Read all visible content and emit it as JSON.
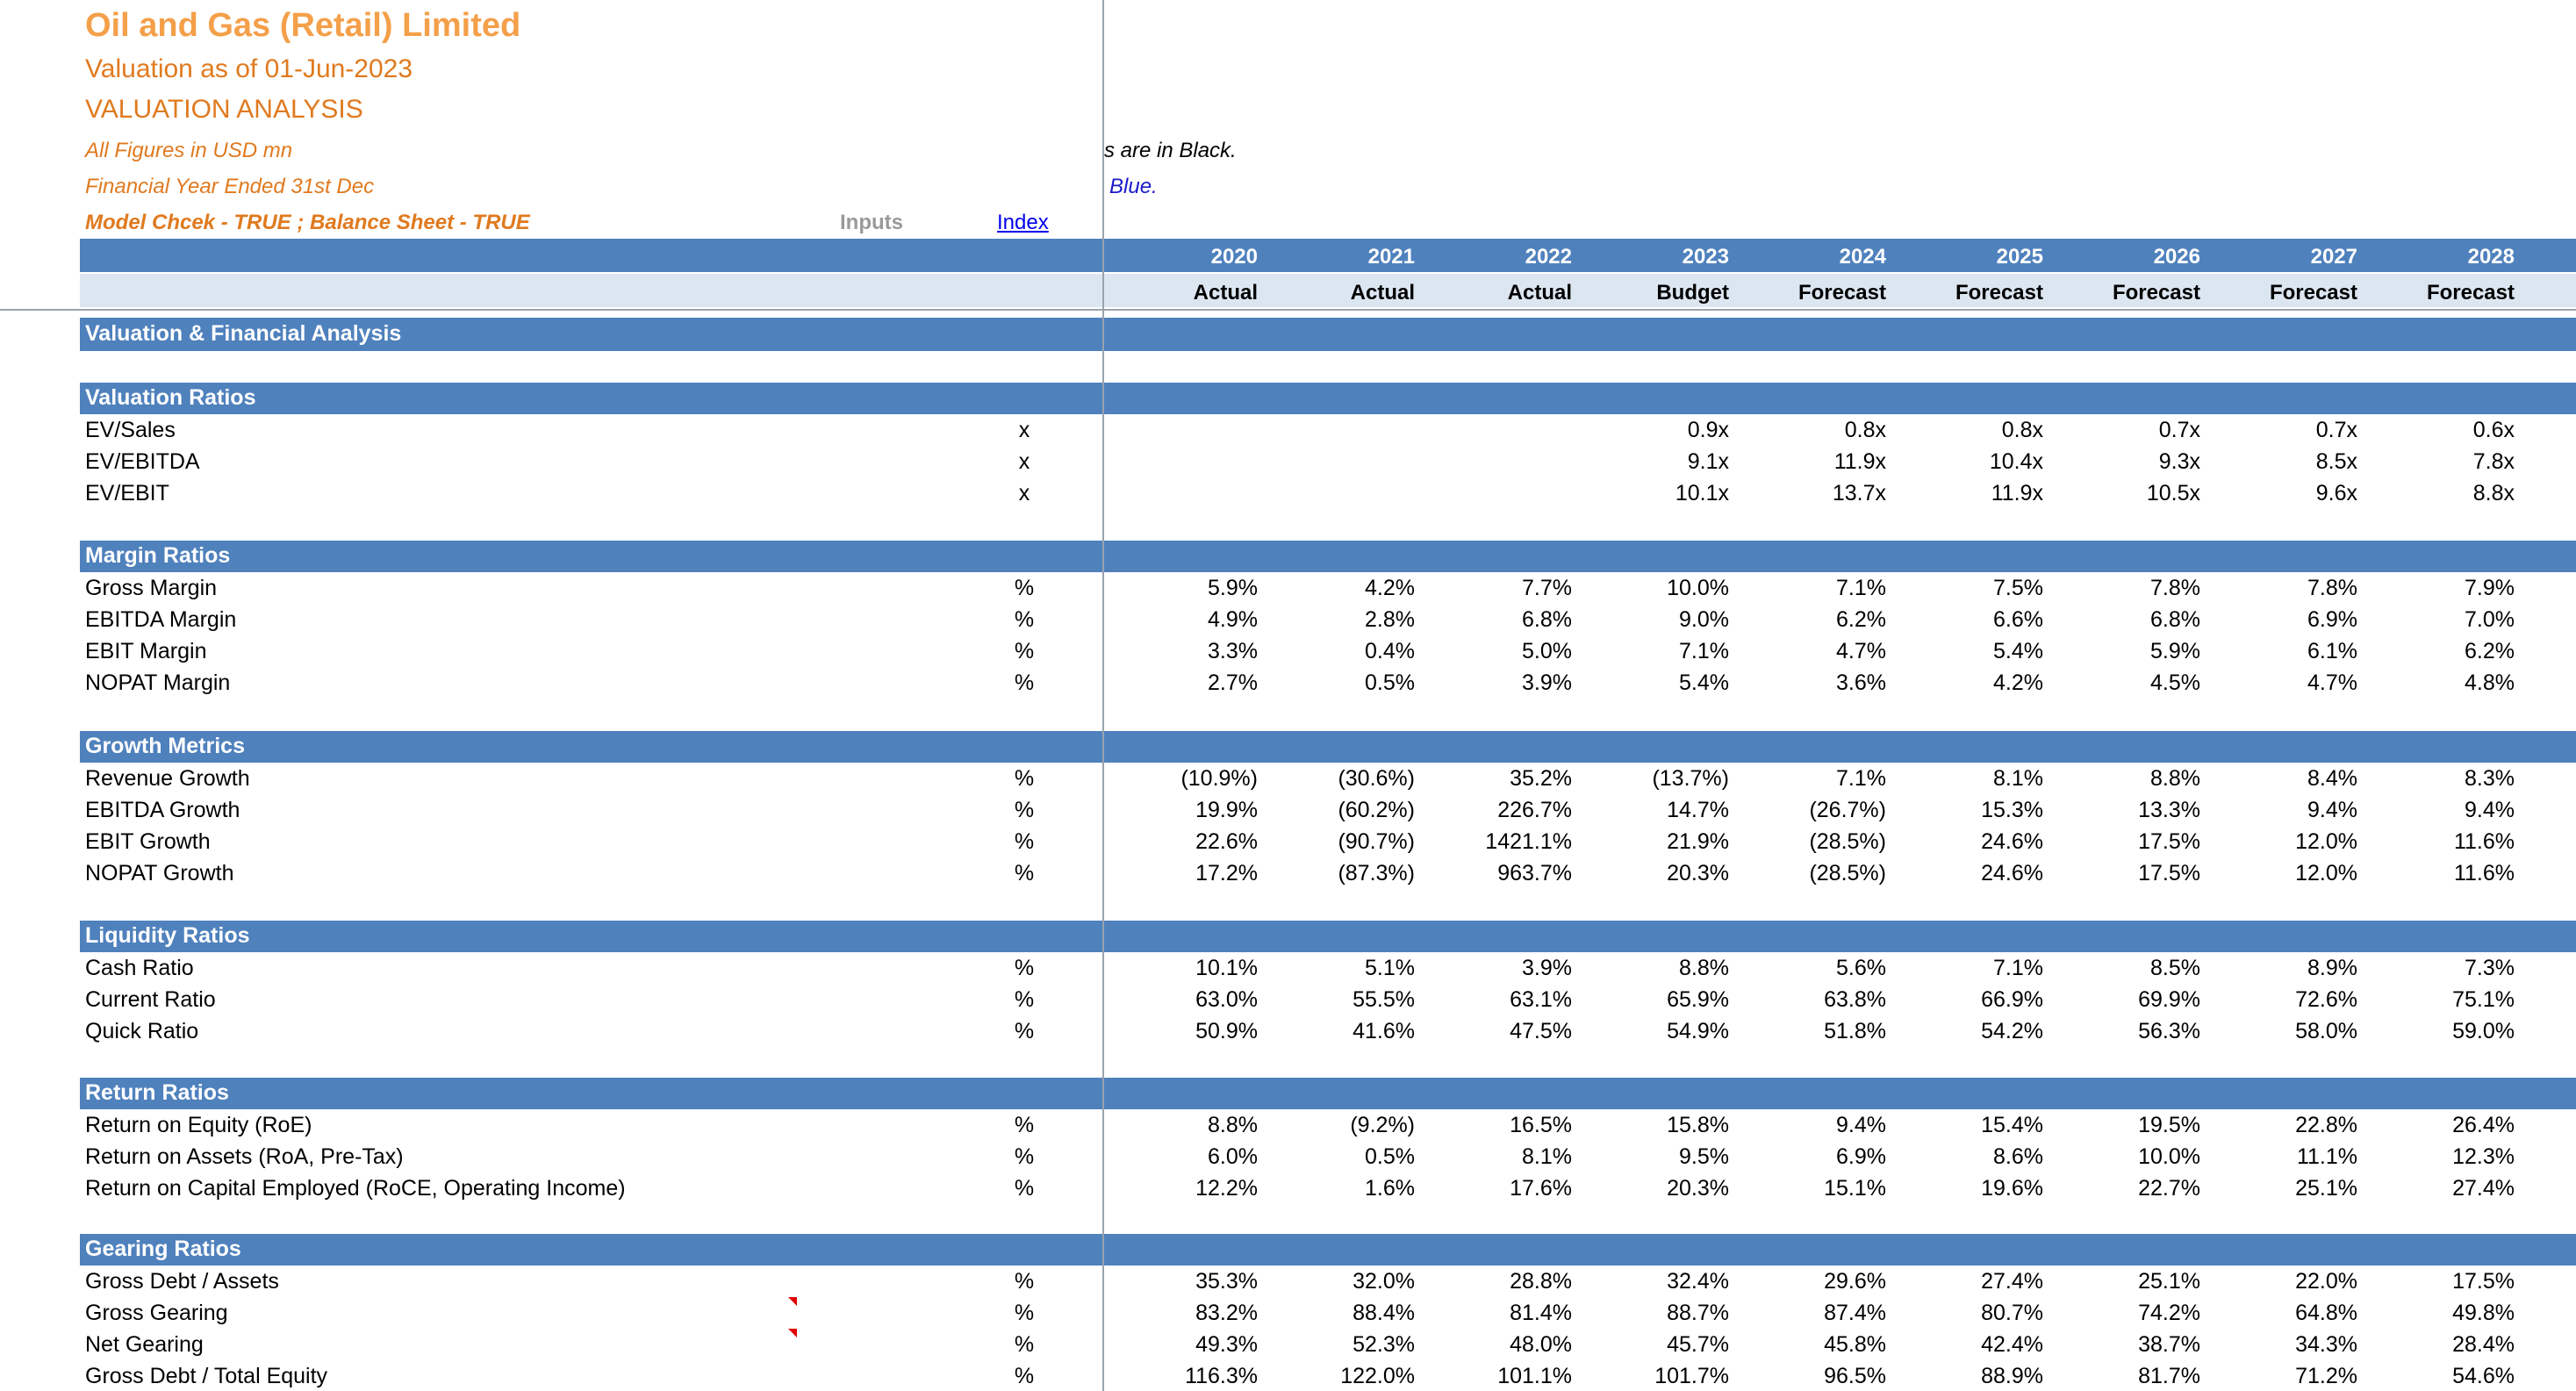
{
  "header": {
    "company": "Oil and Gas (Retail) Limited",
    "valuation_date": "Valuation as of 01-Jun-2023",
    "sheet_title": "VALUATION ANALYSIS",
    "note_currency": "All Figures in USD mn",
    "note_year": "Financial Year Ended 31st Dec",
    "note_check": "Model Chcek - TRUE ;  Balance Sheet - TRUE",
    "note_black": "s are in Black.",
    "note_blue": "Blue.",
    "inputs_label": "Inputs",
    "index_link": "Index"
  },
  "colors": {
    "band": "#4F81BD",
    "light_band": "#DCE6F1",
    "title_orange": "#F4A04A",
    "subtitle_orange": "#E07A1F",
    "link_blue": "#0000EE"
  },
  "columns": {
    "years": [
      "2020",
      "2021",
      "2022",
      "2023",
      "2024",
      "2025",
      "2026",
      "2027",
      "2028"
    ],
    "types": [
      "Actual",
      "Actual",
      "Actual",
      "Budget",
      "Forecast",
      "Forecast",
      "Forecast",
      "Forecast",
      "Forecast"
    ]
  },
  "main_title": "Valuation & Financial Analysis",
  "sections": [
    {
      "title": "Valuation Ratios",
      "rows": [
        {
          "label": "EV/Sales",
          "unit": "x",
          "values": [
            "",
            "",
            "",
            "0.9x",
            "0.8x",
            "0.8x",
            "0.7x",
            "0.7x",
            "0.6x"
          ]
        },
        {
          "label": "EV/EBITDA",
          "unit": "x",
          "values": [
            "",
            "",
            "",
            "9.1x",
            "11.9x",
            "10.4x",
            "9.3x",
            "8.5x",
            "7.8x"
          ]
        },
        {
          "label": "EV/EBIT",
          "unit": "x",
          "values": [
            "",
            "",
            "",
            "10.1x",
            "13.7x",
            "11.9x",
            "10.5x",
            "9.6x",
            "8.8x"
          ]
        }
      ]
    },
    {
      "title": "Margin Ratios",
      "rows": [
        {
          "label": "Gross Margin",
          "unit": "%",
          "values": [
            "5.9%",
            "4.2%",
            "7.7%",
            "10.0%",
            "7.1%",
            "7.5%",
            "7.8%",
            "7.8%",
            "7.9%"
          ]
        },
        {
          "label": "EBITDA Margin",
          "unit": "%",
          "values": [
            "4.9%",
            "2.8%",
            "6.8%",
            "9.0%",
            "6.2%",
            "6.6%",
            "6.8%",
            "6.9%",
            "7.0%"
          ]
        },
        {
          "label": "EBIT Margin",
          "unit": "%",
          "values": [
            "3.3%",
            "0.4%",
            "5.0%",
            "7.1%",
            "4.7%",
            "5.4%",
            "5.9%",
            "6.1%",
            "6.2%"
          ]
        },
        {
          "label": "NOPAT Margin",
          "unit": "%",
          "values": [
            "2.7%",
            "0.5%",
            "3.9%",
            "5.4%",
            "3.6%",
            "4.2%",
            "4.5%",
            "4.7%",
            "4.8%"
          ]
        }
      ]
    },
    {
      "title": "Growth Metrics",
      "rows": [
        {
          "label": "Revenue Growth",
          "unit": "%",
          "values": [
            "(10.9%)",
            "(30.6%)",
            "35.2%",
            "(13.7%)",
            "7.1%",
            "8.1%",
            "8.8%",
            "8.4%",
            "8.3%"
          ]
        },
        {
          "label": "EBITDA Growth",
          "unit": "%",
          "values": [
            "19.9%",
            "(60.2%)",
            "226.7%",
            "14.7%",
            "(26.7%)",
            "15.3%",
            "13.3%",
            "9.4%",
            "9.4%"
          ]
        },
        {
          "label": "EBIT Growth",
          "unit": "%",
          "values": [
            "22.6%",
            "(90.7%)",
            "1421.1%",
            "21.9%",
            "(28.5%)",
            "24.6%",
            "17.5%",
            "12.0%",
            "11.6%"
          ]
        },
        {
          "label": "NOPAT Growth",
          "unit": "%",
          "values": [
            "17.2%",
            "(87.3%)",
            "963.7%",
            "20.3%",
            "(28.5%)",
            "24.6%",
            "17.5%",
            "12.0%",
            "11.6%"
          ]
        }
      ]
    },
    {
      "title": "Liquidity Ratios",
      "rows": [
        {
          "label": "Cash Ratio",
          "unit": "%",
          "values": [
            "10.1%",
            "5.1%",
            "3.9%",
            "8.8%",
            "5.6%",
            "7.1%",
            "8.5%",
            "8.9%",
            "7.3%"
          ]
        },
        {
          "label": "Current Ratio",
          "unit": "%",
          "values": [
            "63.0%",
            "55.5%",
            "63.1%",
            "65.9%",
            "63.8%",
            "66.9%",
            "69.9%",
            "72.6%",
            "75.1%"
          ]
        },
        {
          "label": "Quick Ratio",
          "unit": "%",
          "values": [
            "50.9%",
            "41.6%",
            "47.5%",
            "54.9%",
            "51.8%",
            "54.2%",
            "56.3%",
            "58.0%",
            "59.0%"
          ]
        }
      ]
    },
    {
      "title": "Return Ratios",
      "rows": [
        {
          "label": "Return on Equity (RoE)",
          "unit": "%",
          "values": [
            "8.8%",
            "(9.2%)",
            "16.5%",
            "15.8%",
            "9.4%",
            "15.4%",
            "19.5%",
            "22.8%",
            "26.4%"
          ]
        },
        {
          "label": "Return on Assets (RoA, Pre-Tax)",
          "unit": "%",
          "values": [
            "6.0%",
            "0.5%",
            "8.1%",
            "9.5%",
            "6.9%",
            "8.6%",
            "10.0%",
            "11.1%",
            "12.3%"
          ]
        },
        {
          "label": "Return on Capital Employed (RoCE, Operating Income)",
          "unit": "%",
          "values": [
            "12.2%",
            "1.6%",
            "17.6%",
            "20.3%",
            "15.1%",
            "19.6%",
            "22.7%",
            "25.1%",
            "27.4%"
          ]
        }
      ]
    },
    {
      "title": "Gearing Ratios",
      "rows": [
        {
          "label": "Gross Debt / Assets",
          "unit": "%",
          "values": [
            "35.3%",
            "32.0%",
            "28.8%",
            "32.4%",
            "29.6%",
            "27.4%",
            "25.1%",
            "22.0%",
            "17.5%"
          ]
        },
        {
          "label": "Gross Gearing",
          "unit": "%",
          "values": [
            "83.2%",
            "88.4%",
            "81.4%",
            "88.7%",
            "87.4%",
            "80.7%",
            "74.2%",
            "64.8%",
            "49.8%"
          ]
        },
        {
          "label": "Net Gearing",
          "unit": "%",
          "values": [
            "49.3%",
            "52.3%",
            "48.0%",
            "45.7%",
            "45.8%",
            "42.4%",
            "38.7%",
            "34.3%",
            "28.4%"
          ]
        },
        {
          "label": "Gross Debt / Total Equity",
          "unit": "%",
          "values": [
            "116.3%",
            "122.0%",
            "101.1%",
            "101.7%",
            "96.5%",
            "88.9%",
            "81.7%",
            "71.2%",
            "54.6%"
          ]
        }
      ]
    }
  ]
}
